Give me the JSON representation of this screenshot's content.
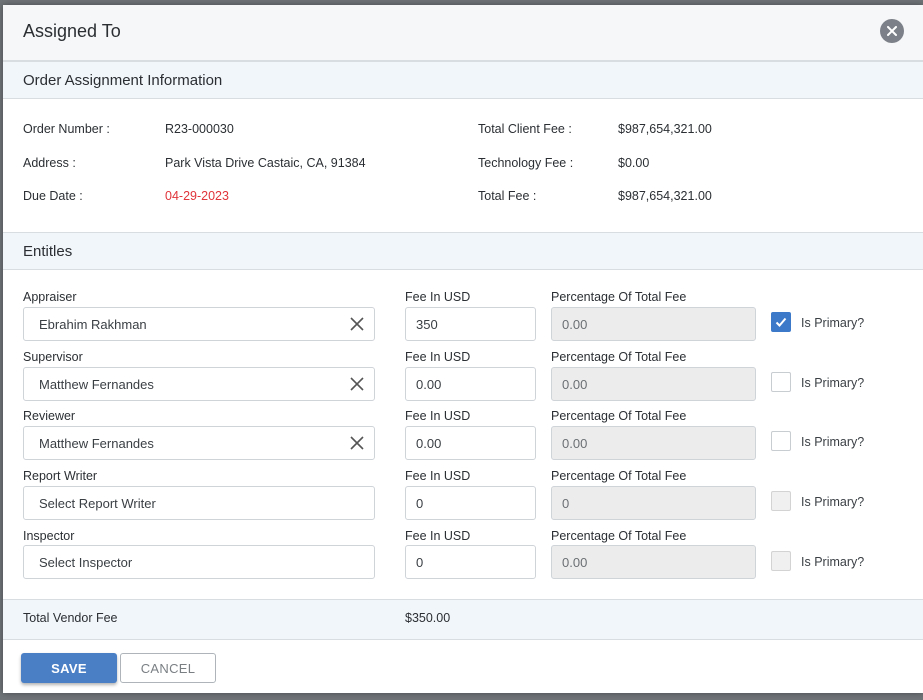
{
  "modal": {
    "title": "Assigned To"
  },
  "order_info": {
    "heading": "Order Assignment Information",
    "order_number_label": "Order Number :",
    "order_number": "R23-000030",
    "address_label": "Address :",
    "address": "Park Vista Drive Castaic, CA, 91384",
    "due_date_label": "Due Date :",
    "due_date": "04-29-2023",
    "total_client_fee_label": "Total Client Fee :",
    "total_client_fee": "$987,654,321.00",
    "technology_fee_label": "Technology Fee :",
    "technology_fee": "$0.00",
    "total_fee_label": "Total Fee :",
    "total_fee": "$987,654,321.00"
  },
  "entities": {
    "heading": "Entitles",
    "fee_label": "Fee In USD",
    "percentage_label": "Percentage Of Total Fee",
    "primary_label": "Is Primary?",
    "rows": [
      {
        "role": "Appraiser",
        "value": "Ebrahim Rakhman",
        "fee": "350",
        "percentage": "0.00",
        "primary": "checked"
      },
      {
        "role": "Supervisor",
        "value": "Matthew Fernandes",
        "fee": "0.00",
        "percentage": "0.00",
        "primary": "unchecked"
      },
      {
        "role": "Reviewer",
        "value": "Matthew Fernandes",
        "fee": "0.00",
        "percentage": "0.00",
        "primary": "unchecked"
      },
      {
        "role": "Report Writer",
        "placeholder": "Select Report Writer",
        "fee": "0",
        "percentage": "0",
        "primary": "disabled"
      },
      {
        "role": "Inspector",
        "placeholder": "Select Inspector",
        "fee": "0",
        "percentage": "0.00",
        "primary": "disabled"
      }
    ]
  },
  "totals": {
    "total_vendor_fee_label": "Total Vendor Fee",
    "total_vendor_fee": "$350.00"
  },
  "footer": {
    "save_label": "SAVE",
    "cancel_label": "CANCEL"
  },
  "colors": {
    "accent": "#4a7fc6",
    "due_date": "#e0343a",
    "section_bg": "#f1f6fa"
  },
  "icons": {
    "close": "close-icon",
    "clear": "clear-x-icon",
    "check": "checkmark-icon"
  }
}
